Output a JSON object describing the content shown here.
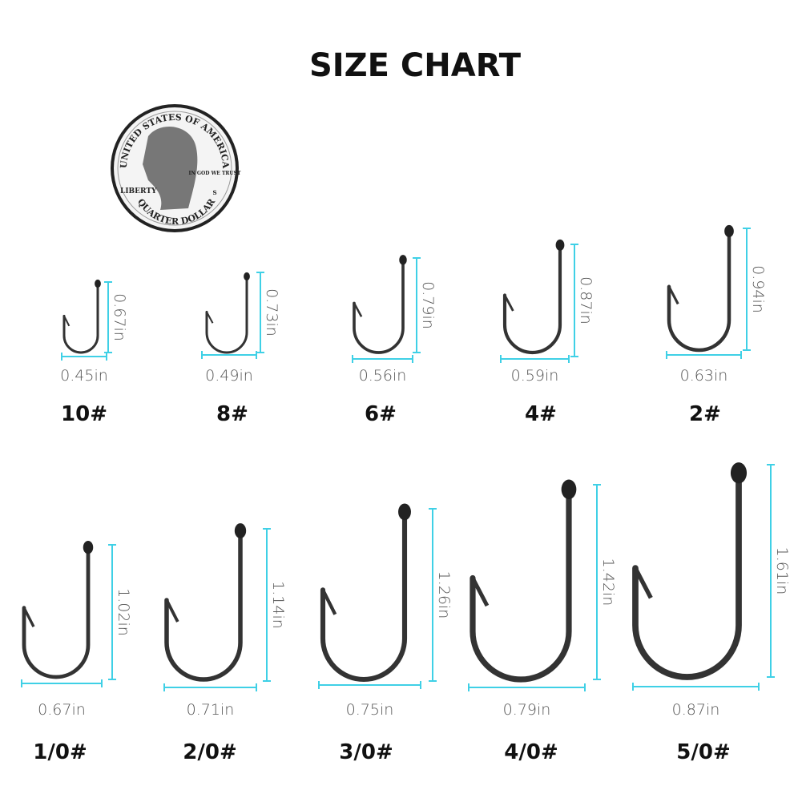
{
  "title": "SIZE CHART",
  "coin": {
    "top": "UNITED STATES OF AMERICA",
    "left": "LIBERTY",
    "motto": "IN GOD WE TRUST",
    "mint": "S",
    "bottom": "QUARTER DOLLAR"
  },
  "hooks": [
    {
      "size": "10#",
      "width": "0.45in",
      "height": "0.67in"
    },
    {
      "size": "8#",
      "width": "0.49in",
      "height": "0.73in"
    },
    {
      "size": "6#",
      "width": "0.56in",
      "height": "0.79in"
    },
    {
      "size": "4#",
      "width": "0.59in",
      "height": "0.87in"
    },
    {
      "size": "2#",
      "width": "0.63in",
      "height": "0.94in"
    },
    {
      "size": "1/0#",
      "width": "0.67in",
      "height": "1.02in"
    },
    {
      "size": "2/0#",
      "width": "0.71in",
      "height": "1.14in"
    },
    {
      "size": "3/0#",
      "width": "0.75in",
      "height": "1.26in"
    },
    {
      "size": "4/0#",
      "width": "0.79in",
      "height": "1.42in"
    },
    {
      "size": "5/0#",
      "width": "0.87in",
      "height": "1.61in"
    }
  ]
}
